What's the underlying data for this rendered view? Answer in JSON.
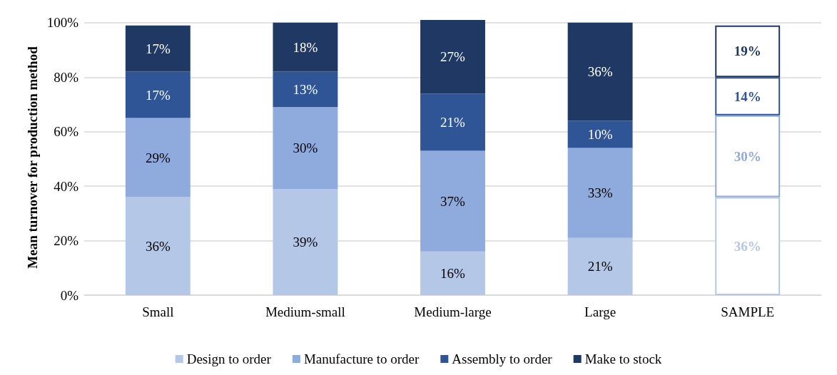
{
  "chart_data": {
    "type": "bar",
    "stacked": true,
    "ylabel": "Mean turnover for production method",
    "categories": [
      "Small",
      "Medium-small",
      "Medium-large",
      "Large",
      "SAMPLE"
    ],
    "series": [
      {
        "name": "Design to order",
        "color": "#b4c7e7",
        "colors": [
          "#b4c7e7",
          "#b4c7e7",
          "#b4c7e7",
          "#b4c7e7",
          "#ffffff"
        ],
        "values": [
          36,
          39,
          16,
          21,
          36
        ],
        "value_labels": [
          "36%",
          "39%",
          "16%",
          "21%",
          "36%"
        ]
      },
      {
        "name": "Manufacture to order",
        "color": "#8faadc",
        "colors": [
          "#8faadc",
          "#8faadc",
          "#8faadc",
          "#8faadc",
          "#ffffff"
        ],
        "values": [
          29,
          30,
          37,
          33,
          30
        ],
        "value_labels": [
          "29%",
          "30%",
          "37%",
          "33%",
          "30%"
        ]
      },
      {
        "name": "Assembly to order",
        "color": "#2f5597",
        "colors": [
          "#2f5597",
          "#2f5597",
          "#2f5597",
          "#2f5597",
          "#ffffff"
        ],
        "values": [
          17,
          13,
          21,
          10,
          14
        ],
        "value_labels": [
          "17%",
          "13%",
          "21%",
          "10%",
          "14%"
        ]
      },
      {
        "name": "Make to stock",
        "color": "#203864",
        "colors": [
          "#203864",
          "#203864",
          "#203864",
          "#203864",
          "#ffffff"
        ],
        "values": [
          17,
          18,
          27,
          36,
          19
        ],
        "value_labels": [
          "17%",
          "18%",
          "27%",
          "36%",
          "19%"
        ]
      }
    ],
    "ylim": [
      0,
      101
    ],
    "yticks": [
      {
        "value": 0,
        "label": "0%"
      },
      {
        "value": 20,
        "label": "20%"
      },
      {
        "value": 40,
        "label": "40%"
      },
      {
        "value": 60,
        "label": "60%"
      },
      {
        "value": 80,
        "label": "80%"
      },
      {
        "value": 100,
        "label": "100%"
      }
    ],
    "grid": "y",
    "legend": "bottom"
  }
}
